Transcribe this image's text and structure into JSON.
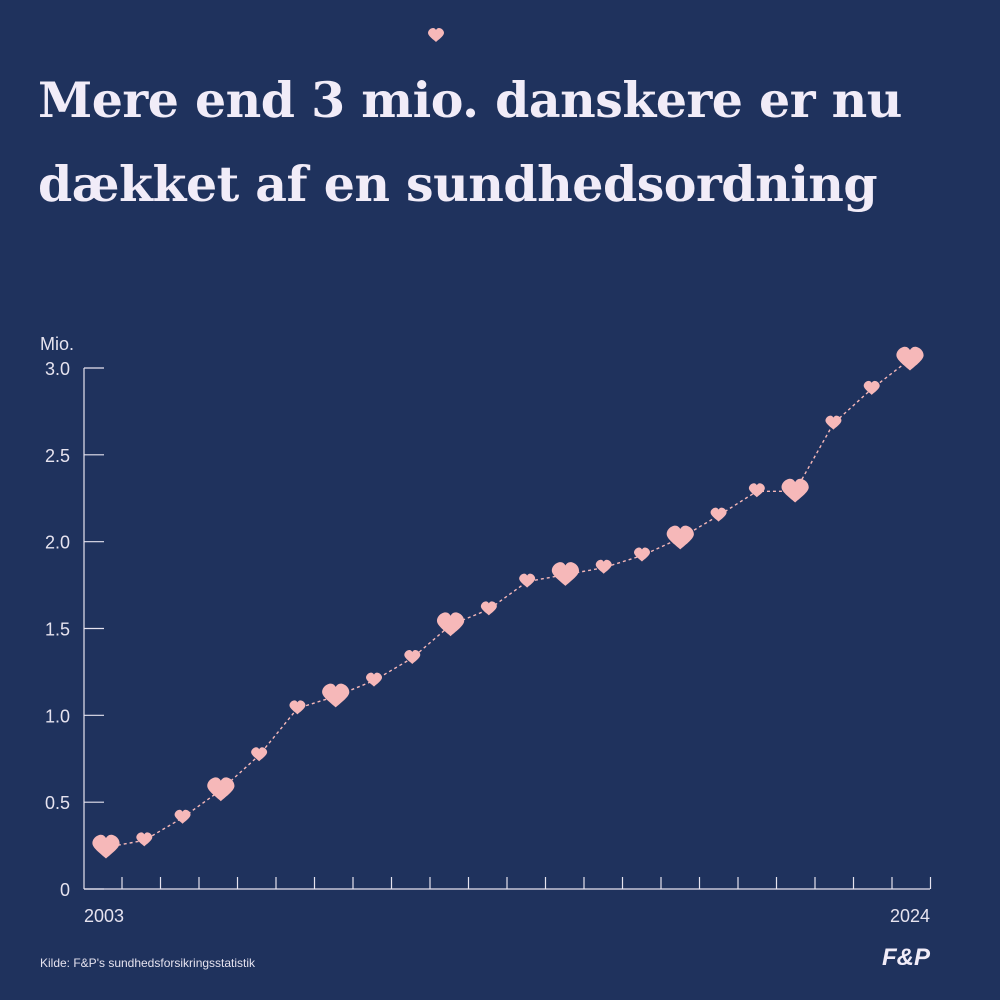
{
  "title": "Mere end 3 mio. danskere er nu dækket af en sundhedsordning",
  "source": "Kilde: F&P's sundhedsforsikringsstatistik",
  "logo": "F&P",
  "colors": {
    "background": "#1f325d",
    "accent": "#f6b8b9",
    "text": "#f1ecf8"
  },
  "icons": {
    "marker": "heart-icon"
  },
  "chart_data": {
    "type": "line",
    "ylabel": "Mio.",
    "ylim": [
      0,
      3.0
    ],
    "yticks": [
      "0",
      "0.5",
      "1.0",
      "1.5",
      "2.0",
      "2.5",
      "3.0"
    ],
    "xlim": [
      2003,
      2024
    ],
    "xtick_labels": [
      "2003",
      "2024"
    ],
    "grid": false,
    "series": [
      {
        "x": [
          2003,
          2004,
          2005,
          2006,
          2007,
          2008,
          2009,
          2010,
          2011,
          2012,
          2013,
          2014,
          2015,
          2016,
          2017,
          2018,
          2019,
          2020,
          2021,
          2022,
          2023,
          2024
        ],
        "values": [
          0.24,
          0.28,
          0.41,
          0.57,
          0.77,
          1.04,
          1.11,
          1.2,
          1.33,
          1.52,
          1.61,
          1.77,
          1.81,
          1.85,
          1.92,
          2.02,
          2.15,
          2.29,
          2.29,
          2.68,
          2.88,
          3.05
        ],
        "large_markers": [
          2003,
          2006,
          2009,
          2012,
          2015,
          2018,
          2021,
          2024
        ]
      }
    ]
  }
}
